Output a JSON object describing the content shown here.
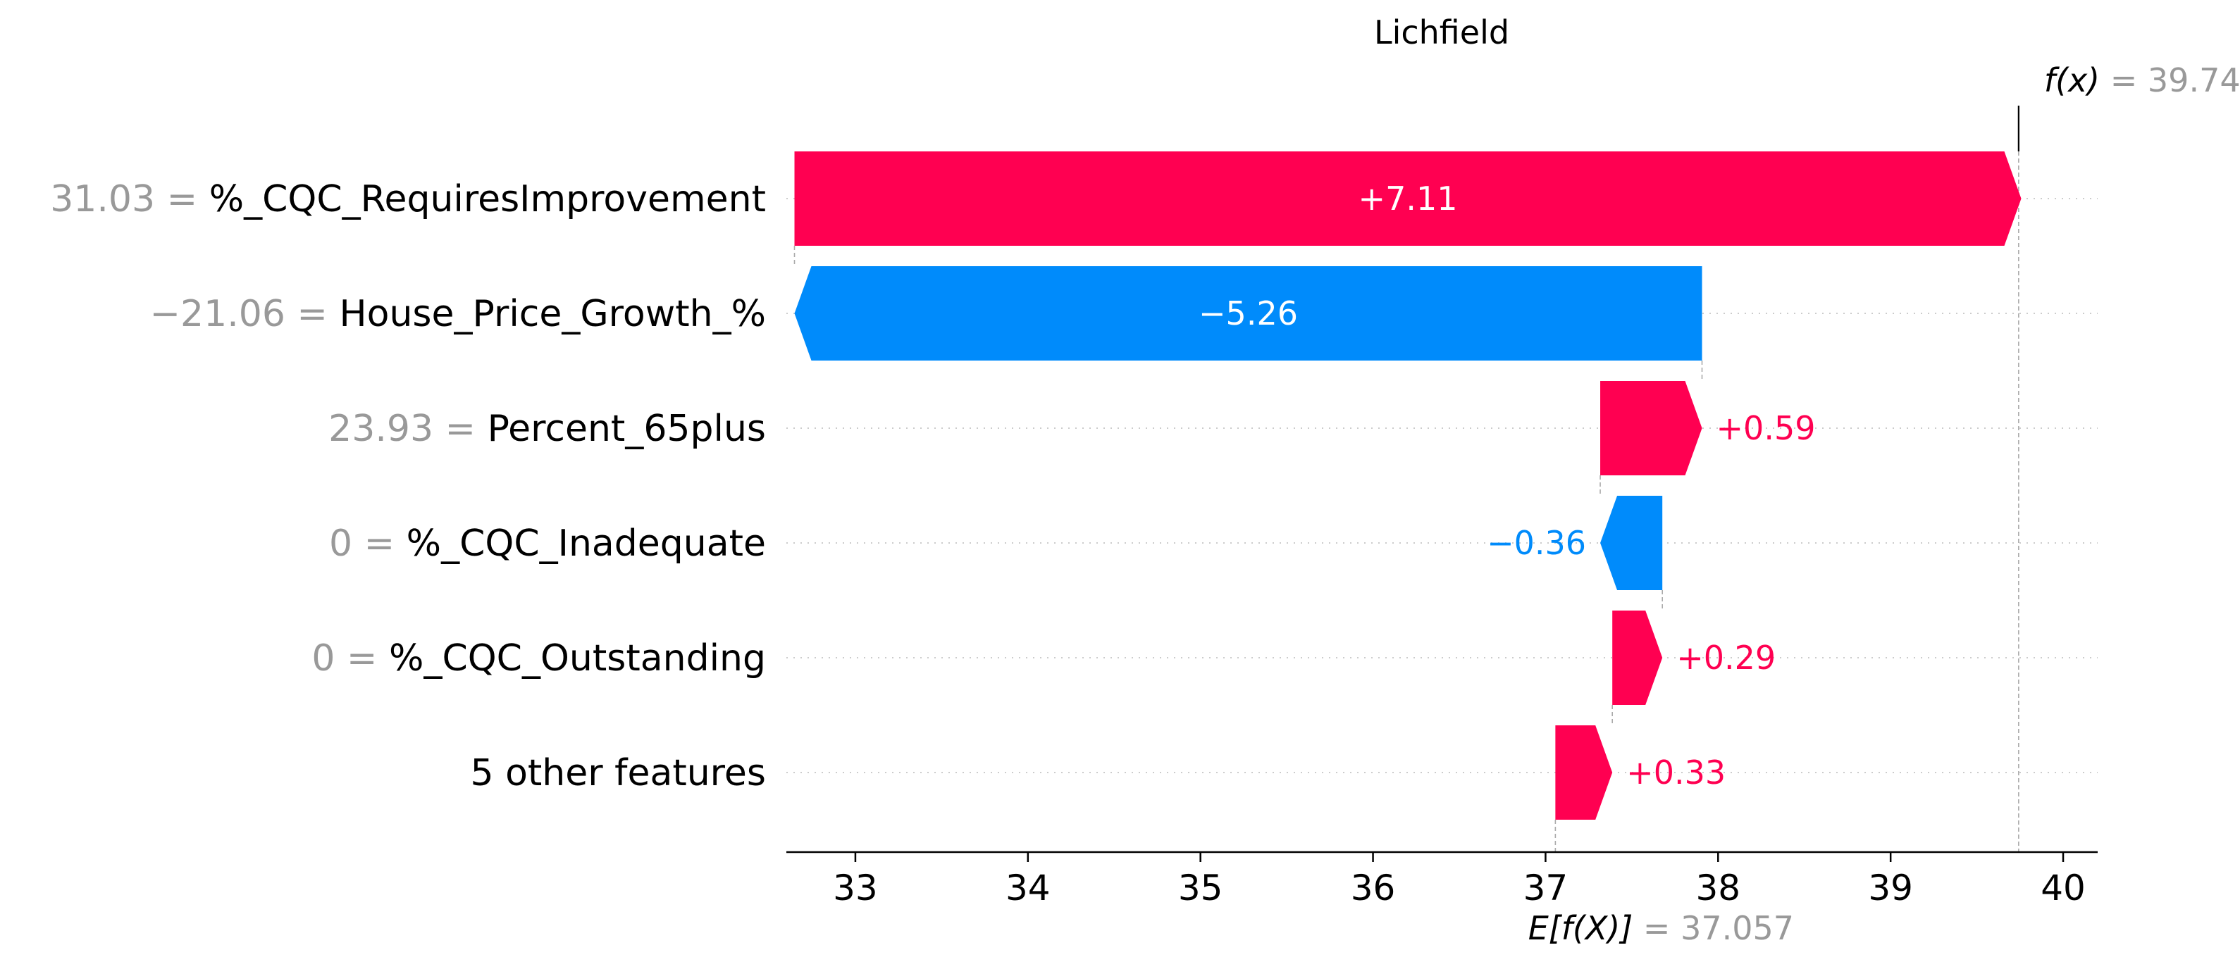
{
  "chart_data": {
    "type": "waterfall",
    "title": "Lichfield",
    "xlim": [
      32.6,
      40.2
    ],
    "xticks": [
      "33",
      "34",
      "35",
      "36",
      "37",
      "38",
      "39",
      "40"
    ],
    "base_value": 37.057,
    "base_value_label": "37.057",
    "base_value_symbol": "E[f(X)]",
    "output_value": 39.742,
    "output_value_label": "39.742",
    "output_value_symbol": "f(x)",
    "features": [
      {
        "value_label": "31.03",
        "feature": "%_CQC_RequiresImprovement",
        "contribution": 7.11,
        "contribution_label": "+7.11",
        "label_inside": true
      },
      {
        "value_label": "−21.06",
        "feature": "House_Price_Growth_%",
        "contribution": -5.26,
        "contribution_label": "−5.26",
        "label_inside": true
      },
      {
        "value_label": "23.93",
        "feature": "Percent_65plus",
        "contribution": 0.59,
        "contribution_label": "+0.59",
        "label_inside": false
      },
      {
        "value_label": "0",
        "feature": "%_CQC_Inadequate",
        "contribution": -0.36,
        "contribution_label": "−0.36",
        "label_inside": false
      },
      {
        "value_label": "0",
        "feature": "%_CQC_Outstanding",
        "contribution": 0.29,
        "contribution_label": "+0.29",
        "label_inside": false
      },
      {
        "value_label": "",
        "feature": "5 other features",
        "contribution": 0.33,
        "contribution_label": "+0.33",
        "label_inside": false
      }
    ],
    "colors": {
      "positive": "#ff0051",
      "negative": "#008bfb",
      "value_text": "#999999",
      "feature_text": "#000000"
    }
  }
}
